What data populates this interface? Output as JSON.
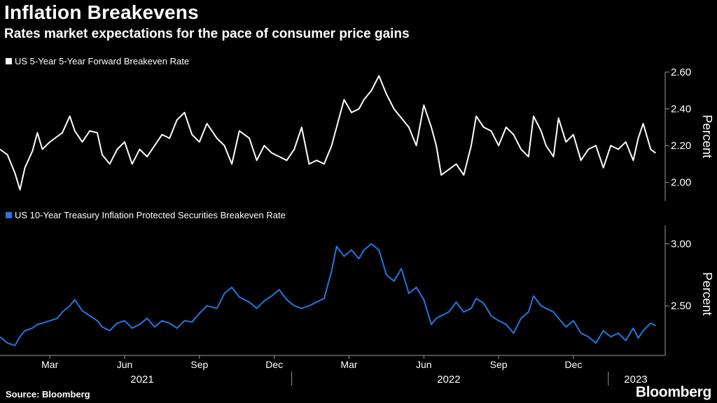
{
  "header": {
    "title": "Inflation Breakevens",
    "subtitle": "Rates market expectations for the pace of consumer price gains"
  },
  "footer": {
    "source": "Source: Bloomberg",
    "brand": "Bloomberg"
  },
  "colors": {
    "background": "#000000",
    "series_top": "#ffffff",
    "series_bottom": "#1f78e0",
    "grid": "#9a9a9a"
  },
  "chart_data": [
    {
      "type": "line",
      "title": "US 5-Year 5-Year Forward Breakeven Rate",
      "legend": "US 5-Year 5-Year Forward Breakeven Rate",
      "ylabel": "Percent",
      "ylim": [
        1.9,
        2.6
      ],
      "yticks": [
        2.0,
        2.2,
        2.4,
        2.6
      ],
      "ytick_labels": [
        "2.00",
        "2.20",
        "2.40",
        "2.60"
      ],
      "x_start": 0,
      "x_end": 26.4,
      "series": [
        {
          "name": "US 5-Year 5-Year Forward Breakeven Rate",
          "x": [
            0,
            0.3,
            0.6,
            0.8,
            1,
            1.3,
            1.5,
            1.7,
            2,
            2.3,
            2.5,
            2.8,
            3,
            3.3,
            3.6,
            3.9,
            4.1,
            4.4,
            4.7,
            5,
            5.3,
            5.6,
            5.9,
            6.2,
            6.5,
            6.8,
            7.1,
            7.4,
            7.7,
            8,
            8.3,
            8.7,
            9,
            9.3,
            9.6,
            10,
            10.3,
            10.6,
            10.9,
            11.2,
            11.5,
            11.8,
            12.1,
            12.4,
            12.7,
            13,
            13.3,
            13.5,
            13.8,
            14.1,
            14.4,
            14.6,
            14.9,
            15.2,
            15.5,
            15.8,
            16.1,
            16.4,
            16.7,
            17,
            17.3,
            17.5,
            17.7,
            18,
            18.3,
            18.6,
            18.9,
            19.1,
            19.4,
            19.7,
            20,
            20.3,
            20.6,
            20.9,
            21.2,
            21.4,
            21.7,
            21.9,
            22.2,
            22.4,
            22.7,
            23,
            23.3,
            23.6,
            23.9,
            24.2,
            24.5,
            24.8,
            25.1,
            25.4,
            25.6,
            25.8,
            26.1,
            26.3
          ],
          "values": [
            2.18,
            2.15,
            2.05,
            1.96,
            2.08,
            2.17,
            2.27,
            2.18,
            2.22,
            2.25,
            2.27,
            2.36,
            2.28,
            2.22,
            2.28,
            2.27,
            2.15,
            2.1,
            2.18,
            2.22,
            2.1,
            2.18,
            2.14,
            2.2,
            2.26,
            2.24,
            2.34,
            2.38,
            2.26,
            2.22,
            2.32,
            2.24,
            2.2,
            2.1,
            2.28,
            2.24,
            2.12,
            2.2,
            2.16,
            2.14,
            2.12,
            2.18,
            2.3,
            2.1,
            2.12,
            2.1,
            2.2,
            2.3,
            2.45,
            2.38,
            2.4,
            2.45,
            2.5,
            2.58,
            2.48,
            2.4,
            2.35,
            2.3,
            2.2,
            2.42,
            2.3,
            2.2,
            2.04,
            2.07,
            2.1,
            2.04,
            2.2,
            2.36,
            2.3,
            2.28,
            2.2,
            2.3,
            2.26,
            2.18,
            2.14,
            2.36,
            2.28,
            2.2,
            2.14,
            2.35,
            2.22,
            2.26,
            2.12,
            2.18,
            2.2,
            2.08,
            2.2,
            2.18,
            2.22,
            2.12,
            2.24,
            2.32,
            2.18,
            2.16
          ]
        }
      ]
    },
    {
      "type": "line",
      "title": "US 10-Year Treasury Inflation Protected Securities Breakeven Rate",
      "legend": "US 10-Year Treasury Inflation Protected Securities Breakeven Rate",
      "ylabel": "Percent",
      "ylim": [
        2.1,
        3.15
      ],
      "yticks": [
        2.5,
        3.0
      ],
      "ytick_labels": [
        "2.50",
        "3.00"
      ],
      "x_start": 0,
      "x_end": 26.4,
      "series": [
        {
          "name": "US 10-Year Treasury Inflation Protected Securities Breakeven Rate",
          "x": [
            0,
            0.3,
            0.6,
            0.8,
            1,
            1.3,
            1.5,
            1.7,
            2,
            2.3,
            2.5,
            2.8,
            3,
            3.3,
            3.6,
            3.9,
            4.1,
            4.4,
            4.7,
            5,
            5.3,
            5.6,
            5.9,
            6.2,
            6.5,
            6.8,
            7.1,
            7.4,
            7.7,
            8,
            8.3,
            8.7,
            9,
            9.3,
            9.6,
            10,
            10.3,
            10.6,
            10.9,
            11.2,
            11.5,
            11.8,
            12.1,
            12.4,
            12.7,
            13,
            13.3,
            13.5,
            13.8,
            14.1,
            14.4,
            14.6,
            14.9,
            15.2,
            15.5,
            15.8,
            16.1,
            16.4,
            16.7,
            17,
            17.3,
            17.5,
            17.7,
            18,
            18.3,
            18.6,
            18.9,
            19.1,
            19.4,
            19.7,
            20,
            20.3,
            20.6,
            20.9,
            21.2,
            21.4,
            21.7,
            21.9,
            22.2,
            22.4,
            22.7,
            23,
            23.3,
            23.6,
            23.9,
            24.2,
            24.5,
            24.8,
            25.1,
            25.4,
            25.6,
            25.8,
            26.1,
            26.3
          ],
          "values": [
            2.25,
            2.2,
            2.18,
            2.25,
            2.3,
            2.32,
            2.35,
            2.36,
            2.38,
            2.4,
            2.45,
            2.5,
            2.55,
            2.46,
            2.42,
            2.38,
            2.33,
            2.3,
            2.36,
            2.38,
            2.32,
            2.35,
            2.4,
            2.33,
            2.38,
            2.36,
            2.32,
            2.38,
            2.37,
            2.44,
            2.5,
            2.48,
            2.6,
            2.65,
            2.57,
            2.53,
            2.48,
            2.54,
            2.58,
            2.63,
            2.55,
            2.5,
            2.48,
            2.5,
            2.53,
            2.56,
            2.78,
            2.98,
            2.9,
            2.95,
            2.88,
            2.95,
            3.0,
            2.95,
            2.75,
            2.7,
            2.8,
            2.6,
            2.65,
            2.55,
            2.35,
            2.4,
            2.42,
            2.45,
            2.53,
            2.45,
            2.48,
            2.56,
            2.52,
            2.42,
            2.38,
            2.35,
            2.28,
            2.4,
            2.45,
            2.58,
            2.5,
            2.48,
            2.45,
            2.4,
            2.33,
            2.38,
            2.28,
            2.25,
            2.2,
            2.3,
            2.25,
            2.28,
            2.22,
            2.32,
            2.24,
            2.3,
            2.36,
            2.34
          ]
        }
      ]
    }
  ],
  "x_axis": {
    "months": [
      {
        "label": "Mar",
        "x": 2
      },
      {
        "label": "Jun",
        "x": 5
      },
      {
        "label": "Sep",
        "x": 8
      },
      {
        "label": "Dec",
        "x": 11
      },
      {
        "label": "Mar",
        "x": 14
      },
      {
        "label": "Jun",
        "x": 17
      },
      {
        "label": "Sep",
        "x": 20
      },
      {
        "label": "Dec",
        "x": 23
      }
    ],
    "years": [
      {
        "label": "2021",
        "x": 5.7
      },
      {
        "label": "2022",
        "x": 18
      },
      {
        "label": "2023",
        "x": 25.5
      }
    ],
    "year_dividers": [
      11.7,
      24.4
    ]
  }
}
